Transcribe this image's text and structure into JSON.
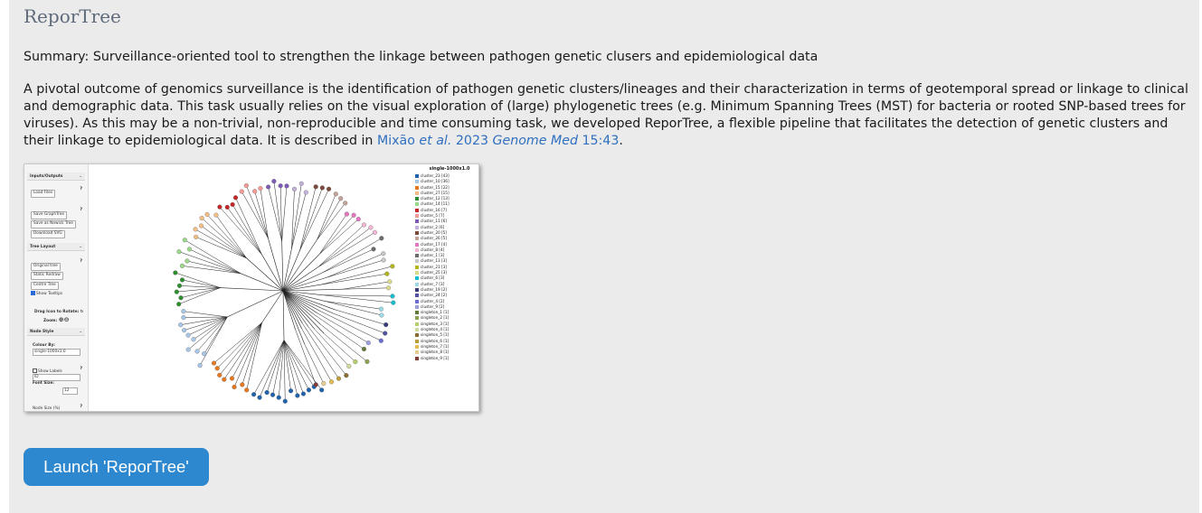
{
  "page": {
    "title": "ReporTree",
    "summary": "Summary: Surveillance-oriented tool to strengthen the linkage between pathogen genetic clusers and epidemiological data",
    "description": {
      "text": "A pivotal outcome of genomics surveillance is the identification of pathogen genetic clusters/lineages and their characterization in terms of geotemporal spread or linkage to clinical and demographic data. This task usually relies on the visual exploration of (large) phylogenetic trees (e.g. Minimum Spanning Trees (MST) for bacteria or rooted SNP-based trees for viruses). As this may be a non-trivial, non-reproducible and time consuming task, we developed ReporTree, a flexible pipeline that facilitates the detection of genetic clusters and their linkage to epidemiological data. It is described in ",
      "citation_authors": "Mixão ",
      "citation_etal": "et al.",
      "citation_year": " 2023 ",
      "citation_journal": "Genome Med",
      "citation_ref": " 15:43",
      "end": "."
    },
    "launch_button": "Launch 'ReporTree'"
  },
  "preview": {
    "sidebar": {
      "sections": {
        "io": "Inputs/Outputs",
        "layout": "Tree Layout",
        "node_style": "Node Style"
      },
      "buttons": {
        "load_files": "Load Files",
        "save_graphtree": "Save GraphTree",
        "save_newick": "Save as Newick Tree",
        "download_svg": "Download SVG",
        "original_tree": "Original tree",
        "static_redraw": "Static Redraw",
        "centre_tree": "Centre Tree"
      },
      "show_tooltips": "Show Tooltips",
      "drag_rotate": "Drag Icon to Rotate:",
      "zoom": "Zoom:",
      "colour_by": "Colour By:",
      "colour_by_value": "single-1000x1.0",
      "show_labels": "Show Labels",
      "label_value": "ID",
      "font_size": "Font Size:",
      "font_size_value": "12",
      "node_size": "Node Size (%)"
    },
    "legend": {
      "title": "single-1000x1.0",
      "items": [
        {
          "label": "cluster_23 [43]",
          "color": "#1f63ad"
        },
        {
          "label": "cluster_10 [36]",
          "color": "#a8c6e6"
        },
        {
          "label": "cluster_15 [22]",
          "color": "#e6781f"
        },
        {
          "label": "cluster_27 [15]",
          "color": "#f2be86"
        },
        {
          "label": "cluster_12 [13]",
          "color": "#2e8f2e"
        },
        {
          "label": "cluster_14 [11]",
          "color": "#9bd88a"
        },
        {
          "label": "cluster_16 [7]",
          "color": "#c62828"
        },
        {
          "label": "cluster_5 [7]",
          "color": "#f59a96"
        },
        {
          "label": "cluster_11 [6]",
          "color": "#7d5ab5"
        },
        {
          "label": "cluster_2 [6]",
          "color": "#c2b0d9"
        },
        {
          "label": "cluster_20 [5]",
          "color": "#7b4a3a"
        },
        {
          "label": "cluster_26 [5]",
          "color": "#c4a39a"
        },
        {
          "label": "cluster_17 [4]",
          "color": "#e377c2"
        },
        {
          "label": "cluster_8 [4]",
          "color": "#f4b6d2"
        },
        {
          "label": "cluster_1 [3]",
          "color": "#6b6b6b"
        },
        {
          "label": "cluster_13 [3]",
          "color": "#c7c7c7"
        },
        {
          "label": "cluster_21 [3]",
          "color": "#b5b51e"
        },
        {
          "label": "cluster_25 [3]",
          "color": "#dbdb8d"
        },
        {
          "label": "cluster_6 [3]",
          "color": "#17becf"
        },
        {
          "label": "cluster_7 [3]",
          "color": "#9edae5"
        },
        {
          "label": "cluster_19 [2]",
          "color": "#393b79"
        },
        {
          "label": "cluster_24 [2]",
          "color": "#5254a3"
        },
        {
          "label": "cluster_4 [2]",
          "color": "#6b6ecf"
        },
        {
          "label": "cluster_9 [2]",
          "color": "#9c9ede"
        },
        {
          "label": "singleton_1 [1]",
          "color": "#637939"
        },
        {
          "label": "singleton_2 [1]",
          "color": "#8ca252"
        },
        {
          "label": "singleton_3 [1]",
          "color": "#b5cf6b"
        },
        {
          "label": "singleton_4 [1]",
          "color": "#cedb9c"
        },
        {
          "label": "singleton_5 [1]",
          "color": "#8c6d31"
        },
        {
          "label": "singleton_6 [1]",
          "color": "#bd9e39"
        },
        {
          "label": "singleton_7 [1]",
          "color": "#e7ba52"
        },
        {
          "label": "singleton_8 [1]",
          "color": "#e7cb94"
        },
        {
          "label": "singleton_9 [1]",
          "color": "#843c39"
        }
      ]
    }
  }
}
